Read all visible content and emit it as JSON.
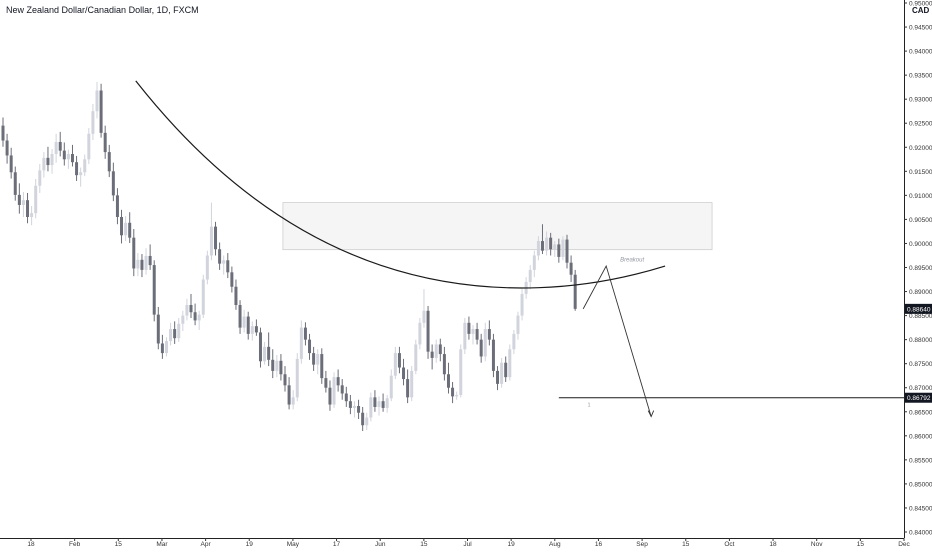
{
  "chart_data": {
    "type": "candlestick",
    "title": "New Zealand Dollar/Canadian Dollar, 1D, FXCM",
    "currency": "CAD",
    "ylim": [
      0.84,
      0.95
    ],
    "y_ticks": [
      "0.95000",
      "0.94500",
      "0.94000",
      "0.93500",
      "0.93000",
      "0.92500",
      "0.92000",
      "0.91500",
      "0.91000",
      "0.90500",
      "0.90000",
      "0.89500",
      "0.89000",
      "0.88500",
      "0.88000",
      "0.87500",
      "0.87000",
      "0.86500",
      "0.86000",
      "0.85500",
      "0.85000",
      "0.84500",
      "0.84000"
    ],
    "x_ticks": [
      "18",
      "Feb",
      "15",
      "Mar",
      "Apr",
      "19",
      "May",
      "17",
      "Jun",
      "15",
      "Jul",
      "19",
      "Aug",
      "16",
      "Sep",
      "15",
      "Oct",
      "18",
      "Nov",
      "15",
      "Dec"
    ],
    "price_labels": [
      {
        "text": "0.88640",
        "price": 0.8864
      },
      {
        "text": "0.86792",
        "price": 0.86792
      }
    ],
    "candles": [
      [
        0.9245,
        0.9262,
        0.9201,
        0.9214
      ],
      [
        0.9214,
        0.9228,
        0.9166,
        0.9183
      ],
      [
        0.9183,
        0.9199,
        0.9135,
        0.9148
      ],
      [
        0.9148,
        0.916,
        0.9089,
        0.9101
      ],
      [
        0.9101,
        0.9125,
        0.9062,
        0.908
      ],
      [
        0.908,
        0.9107,
        0.9055,
        0.909
      ],
      [
        0.909,
        0.9105,
        0.9042,
        0.9055
      ],
      [
        0.9055,
        0.9078,
        0.9038,
        0.9063
      ],
      [
        0.9063,
        0.9134,
        0.9052,
        0.912
      ],
      [
        0.912,
        0.9165,
        0.9105,
        0.9152
      ],
      [
        0.9152,
        0.919,
        0.9137,
        0.9178
      ],
      [
        0.9178,
        0.9201,
        0.915,
        0.9163
      ],
      [
        0.9163,
        0.9196,
        0.9145,
        0.9186
      ],
      [
        0.9186,
        0.9228,
        0.9168,
        0.9211
      ],
      [
        0.9211,
        0.9232,
        0.9181,
        0.9193
      ],
      [
        0.9193,
        0.921,
        0.9162,
        0.9175
      ],
      [
        0.9175,
        0.9195,
        0.9155,
        0.9186
      ],
      [
        0.9186,
        0.9205,
        0.916,
        0.9169
      ],
      [
        0.9169,
        0.9182,
        0.913,
        0.9142
      ],
      [
        0.9142,
        0.9158,
        0.9118,
        0.9148
      ],
      [
        0.9148,
        0.9185,
        0.914,
        0.9175
      ],
      [
        0.9175,
        0.924,
        0.9165,
        0.9228
      ],
      [
        0.9228,
        0.929,
        0.9215,
        0.9275
      ],
      [
        0.9275,
        0.9336,
        0.926,
        0.9318
      ],
      [
        0.9318,
        0.9332,
        0.922,
        0.923
      ],
      [
        0.923,
        0.9245,
        0.9176,
        0.919
      ],
      [
        0.919,
        0.9205,
        0.9138,
        0.915
      ],
      [
        0.915,
        0.9168,
        0.9088,
        0.91
      ],
      [
        0.91,
        0.9115,
        0.904,
        0.9055
      ],
      [
        0.9055,
        0.907,
        0.9,
        0.9017
      ],
      [
        0.9017,
        0.9057,
        0.9005,
        0.9043
      ],
      [
        0.9043,
        0.9065,
        0.9001,
        0.9012
      ],
      [
        0.9012,
        0.903,
        0.8932,
        0.8948
      ],
      [
        0.8948,
        0.898,
        0.8932,
        0.8966
      ],
      [
        0.8966,
        0.8978,
        0.893,
        0.8945
      ],
      [
        0.8945,
        0.899,
        0.8935,
        0.8974
      ],
      [
        0.8974,
        0.8998,
        0.8945,
        0.8955
      ],
      [
        0.8955,
        0.8965,
        0.8838,
        0.8852
      ],
      [
        0.8852,
        0.8868,
        0.878,
        0.8792
      ],
      [
        0.8792,
        0.881,
        0.876,
        0.8772
      ],
      [
        0.8772,
        0.8805,
        0.8765,
        0.8797
      ],
      [
        0.8797,
        0.8835,
        0.8788,
        0.8822
      ],
      [
        0.8822,
        0.8838,
        0.8791,
        0.8803
      ],
      [
        0.8803,
        0.8845,
        0.8795,
        0.8833
      ],
      [
        0.8833,
        0.886,
        0.8818,
        0.885
      ],
      [
        0.885,
        0.8885,
        0.884,
        0.8872
      ],
      [
        0.8872,
        0.8895,
        0.8845,
        0.8857
      ],
      [
        0.8857,
        0.8875,
        0.883,
        0.884
      ],
      [
        0.884,
        0.886,
        0.882,
        0.8852
      ],
      [
        0.8852,
        0.8935,
        0.8845,
        0.8925
      ],
      [
        0.8925,
        0.8985,
        0.8915,
        0.8975
      ],
      [
        0.8975,
        0.9085,
        0.8965,
        0.9035
      ],
      [
        0.9035,
        0.9045,
        0.8975,
        0.8988
      ],
      [
        0.8988,
        0.9002,
        0.8945,
        0.8958
      ],
      [
        0.8958,
        0.8975,
        0.8935,
        0.8965
      ],
      [
        0.8965,
        0.898,
        0.8928,
        0.894
      ],
      [
        0.894,
        0.8952,
        0.8898,
        0.891
      ],
      [
        0.891,
        0.8925,
        0.8862,
        0.8872
      ],
      [
        0.8872,
        0.8882,
        0.8812,
        0.8825
      ],
      [
        0.8825,
        0.8862,
        0.8815,
        0.8848
      ],
      [
        0.8848,
        0.8858,
        0.88,
        0.8812
      ],
      [
        0.8812,
        0.8838,
        0.8798,
        0.8828
      ],
      [
        0.8828,
        0.8842,
        0.8808,
        0.8815
      ],
      [
        0.8815,
        0.8825,
        0.8742,
        0.8755
      ],
      [
        0.8755,
        0.8795,
        0.8748,
        0.8785
      ],
      [
        0.8785,
        0.8815,
        0.8745,
        0.8758
      ],
      [
        0.8758,
        0.878,
        0.872,
        0.8735
      ],
      [
        0.8735,
        0.8768,
        0.8722,
        0.8756
      ],
      [
        0.8756,
        0.877,
        0.8715,
        0.8728
      ],
      [
        0.8728,
        0.8745,
        0.8692,
        0.8705
      ],
      [
        0.8705,
        0.8722,
        0.8655,
        0.8665
      ],
      [
        0.8665,
        0.8695,
        0.8655,
        0.868
      ],
      [
        0.868,
        0.8772,
        0.8672,
        0.876
      ],
      [
        0.876,
        0.884,
        0.875,
        0.8825
      ],
      [
        0.8825,
        0.8836,
        0.8788,
        0.88
      ],
      [
        0.88,
        0.8812,
        0.8758,
        0.8772
      ],
      [
        0.8772,
        0.8785,
        0.8735,
        0.8748
      ],
      [
        0.8748,
        0.878,
        0.8728,
        0.877
      ],
      [
        0.877,
        0.8782,
        0.8708,
        0.872
      ],
      [
        0.872,
        0.8735,
        0.869,
        0.87
      ],
      [
        0.87,
        0.8715,
        0.8652,
        0.8665
      ],
      [
        0.8665,
        0.8732,
        0.8658,
        0.8722
      ],
      [
        0.8722,
        0.8738,
        0.8692,
        0.8705
      ],
      [
        0.8705,
        0.8718,
        0.8675,
        0.8688
      ],
      [
        0.8688,
        0.8702,
        0.866,
        0.8672
      ],
      [
        0.8672,
        0.8685,
        0.8645,
        0.8658
      ],
      [
        0.8658,
        0.8672,
        0.8638,
        0.8662
      ],
      [
        0.8662,
        0.8675,
        0.8635,
        0.8648
      ],
      [
        0.8648,
        0.866,
        0.861,
        0.8622
      ],
      [
        0.8622,
        0.8648,
        0.8612,
        0.8638
      ],
      [
        0.8638,
        0.869,
        0.863,
        0.868
      ],
      [
        0.868,
        0.8695,
        0.865,
        0.866
      ],
      [
        0.866,
        0.8682,
        0.8642,
        0.8672
      ],
      [
        0.8672,
        0.8688,
        0.865,
        0.8658
      ],
      [
        0.8658,
        0.8685,
        0.8648,
        0.8678
      ],
      [
        0.8678,
        0.8738,
        0.8672,
        0.8725
      ],
      [
        0.8725,
        0.8785,
        0.8718,
        0.8772
      ],
      [
        0.8772,
        0.8785,
        0.873,
        0.8742
      ],
      [
        0.8742,
        0.876,
        0.8705,
        0.8718
      ],
      [
        0.8718,
        0.8738,
        0.8668,
        0.868
      ],
      [
        0.868,
        0.8745,
        0.8672,
        0.8735
      ],
      [
        0.8735,
        0.88,
        0.8728,
        0.879
      ],
      [
        0.879,
        0.8845,
        0.878,
        0.8835
      ],
      [
        0.8835,
        0.8905,
        0.8825,
        0.886
      ],
      [
        0.886,
        0.887,
        0.876,
        0.8775
      ],
      [
        0.8775,
        0.879,
        0.8738,
        0.8762
      ],
      [
        0.8762,
        0.88,
        0.8752,
        0.879
      ],
      [
        0.879,
        0.8802,
        0.8755,
        0.877
      ],
      [
        0.877,
        0.8785,
        0.8715,
        0.8728
      ],
      [
        0.8728,
        0.8752,
        0.8688,
        0.87
      ],
      [
        0.87,
        0.8712,
        0.8668,
        0.8682
      ],
      [
        0.8682,
        0.8692,
        0.8675,
        0.8685
      ],
      [
        0.8685,
        0.879,
        0.868,
        0.878
      ],
      [
        0.878,
        0.8845,
        0.877,
        0.8835
      ],
      [
        0.8835,
        0.8848,
        0.88,
        0.8812
      ],
      [
        0.8812,
        0.883,
        0.879,
        0.8822
      ],
      [
        0.8822,
        0.8835,
        0.879,
        0.88
      ],
      [
        0.88,
        0.8812,
        0.8752,
        0.8765
      ],
      [
        0.8765,
        0.8835,
        0.8755,
        0.8822
      ],
      [
        0.8822,
        0.884,
        0.8788,
        0.88
      ],
      [
        0.88,
        0.8812,
        0.8722,
        0.8735
      ],
      [
        0.8735,
        0.8745,
        0.8695,
        0.8708
      ],
      [
        0.8708,
        0.8762,
        0.87,
        0.8752
      ],
      [
        0.8752,
        0.8765,
        0.8712,
        0.8722
      ],
      [
        0.8722,
        0.879,
        0.8715,
        0.878
      ],
      [
        0.878,
        0.882,
        0.877,
        0.8812
      ],
      [
        0.8812,
        0.8858,
        0.88,
        0.885
      ],
      [
        0.885,
        0.8905,
        0.884,
        0.8895
      ],
      [
        0.8895,
        0.893,
        0.8885,
        0.892
      ],
      [
        0.892,
        0.8955,
        0.8905,
        0.8945
      ],
      [
        0.8945,
        0.8985,
        0.893,
        0.8975
      ],
      [
        0.8975,
        0.9015,
        0.8965,
        0.9005
      ],
      [
        0.9005,
        0.904,
        0.8978,
        0.8985
      ],
      [
        0.8985,
        0.9025,
        0.8975,
        0.9012
      ],
      [
        0.9012,
        0.9022,
        0.8975,
        0.8988
      ],
      [
        0.8988,
        0.9005,
        0.8972,
        0.8998
      ],
      [
        0.8998,
        0.901,
        0.896,
        0.8972
      ],
      [
        0.8972,
        0.9015,
        0.8965,
        0.9008
      ],
      [
        0.9008,
        0.9018,
        0.8948,
        0.896
      ],
      [
        0.896,
        0.8975,
        0.892,
        0.8935
      ],
      [
        0.8935,
        0.8945,
        0.886,
        0.8864
      ]
    ],
    "rounded_bottom": [
      [
        0.9338,
        0.8908
      ],
      [
        0.8908,
        0.8953
      ]
    ],
    "resistance_zone": [
      0.9085,
      0.8987
    ],
    "breakout_label": "Breakout",
    "neckline_level": 0.86792,
    "projection": [
      0.8864,
      0.8953,
      0.864
    ],
    "wave_label": "1"
  }
}
